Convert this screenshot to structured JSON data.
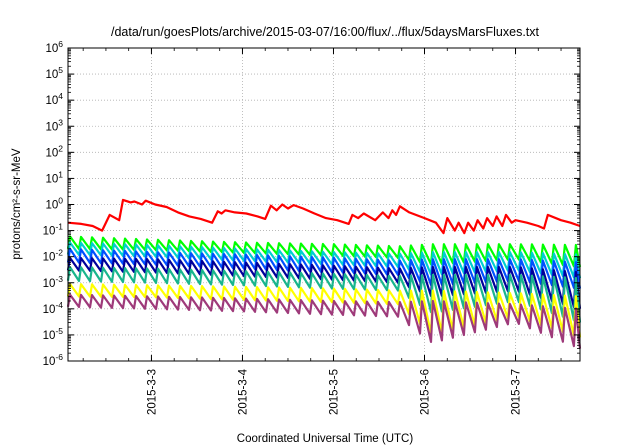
{
  "chart_data": {
    "type": "line",
    "title": "/data/run/goesPlots/archive/2015-03-07/16:00/flux/../flux/5daysMarsFluxes.txt",
    "xlabel": "Coordinated Universal Time (UTC)",
    "ylabel": "protons/cm²-s-sr-MeV",
    "y_scale": "log",
    "ylim": [
      1e-06,
      1000000.0
    ],
    "xlim": [
      "2015-03-02 02:00",
      "2015-03-07 17:00"
    ],
    "grid": true,
    "legend": "none",
    "y_tick_labels": [
      {
        "base": "10",
        "exp": "-6"
      },
      {
        "base": "10",
        "exp": "-5"
      },
      {
        "base": "10",
        "exp": "-4"
      },
      {
        "base": "10",
        "exp": "-3"
      },
      {
        "base": "10",
        "exp": "-2"
      },
      {
        "base": "10",
        "exp": "-1"
      },
      {
        "base": "10",
        "exp": "0"
      },
      {
        "base": "10",
        "exp": "1"
      },
      {
        "base": "10",
        "exp": "2"
      },
      {
        "base": "10",
        "exp": "3"
      },
      {
        "base": "10",
        "exp": "4"
      },
      {
        "base": "10",
        "exp": "5"
      },
      {
        "base": "10",
        "exp": "6"
      }
    ],
    "x_ticks": [
      {
        "label": "2015-3-3",
        "date": "2015-03-03 00:00"
      },
      {
        "label": "2015-3-4",
        "date": "2015-03-04 00:00"
      },
      {
        "label": "2015-3-5",
        "date": "2015-03-05 00:00"
      },
      {
        "label": "2015-3-6",
        "date": "2015-03-06 00:00"
      },
      {
        "label": "2015-3-7",
        "date": "2015-03-07 00:00"
      }
    ],
    "series": [
      {
        "color": "#ff0000",
        "points": [
          [
            "2015-03-02 02:00",
            0.2
          ],
          [
            "2015-03-02 05:30",
            0.18
          ],
          [
            "2015-03-02 08:30",
            0.15
          ],
          [
            "2015-03-02 11:00",
            0.1
          ],
          [
            "2015-03-02 13:00",
            0.4
          ],
          [
            "2015-03-02 14:30",
            0.3
          ],
          [
            "2015-03-02 15:30",
            0.25
          ],
          [
            "2015-03-02 16:30",
            1.5
          ],
          [
            "2015-03-02 18:30",
            1.2
          ],
          [
            "2015-03-02 19:30",
            1.3
          ],
          [
            "2015-03-02 21:30",
            1.0
          ],
          [
            "2015-03-02 22:30",
            1.4
          ],
          [
            "2015-03-03 01:00",
            1.0
          ],
          [
            "2015-03-03 04:00",
            0.8
          ],
          [
            "2015-03-03 07:00",
            0.5
          ],
          [
            "2015-03-03 10:00",
            0.35
          ],
          [
            "2015-03-03 13:00",
            0.28
          ],
          [
            "2015-03-03 16:00",
            0.2
          ],
          [
            "2015-03-03 17:30",
            0.55
          ],
          [
            "2015-03-03 18:30",
            0.45
          ],
          [
            "2015-03-03 19:30",
            0.6
          ],
          [
            "2015-03-03 22:00",
            0.5
          ],
          [
            "2015-03-04 01:00",
            0.45
          ],
          [
            "2015-03-04 04:00",
            0.35
          ],
          [
            "2015-03-04 06:00",
            0.28
          ],
          [
            "2015-03-04 07:30",
            0.9
          ],
          [
            "2015-03-04 09:00",
            0.6
          ],
          [
            "2015-03-04 10:30",
            1.0
          ],
          [
            "2015-03-04 12:00",
            0.7
          ],
          [
            "2015-03-04 13:30",
            0.95
          ],
          [
            "2015-03-04 16:00",
            0.7
          ],
          [
            "2015-03-04 19:00",
            0.45
          ],
          [
            "2015-03-04 22:00",
            0.3
          ],
          [
            "2015-03-05 01:00",
            0.25
          ],
          [
            "2015-03-05 04:00",
            0.18
          ],
          [
            "2015-03-05 05:00",
            0.4
          ],
          [
            "2015-03-05 06:30",
            0.3
          ],
          [
            "2015-03-05 08:00",
            0.45
          ],
          [
            "2015-03-05 11:00",
            0.25
          ],
          [
            "2015-03-05 13:00",
            0.5
          ],
          [
            "2015-03-05 14:30",
            0.3
          ],
          [
            "2015-03-05 15:30",
            0.6
          ],
          [
            "2015-03-05 16:30",
            0.4
          ],
          [
            "2015-03-05 17:30",
            0.85
          ],
          [
            "2015-03-05 20:00",
            0.5
          ],
          [
            "2015-03-06 00:00",
            0.3
          ],
          [
            "2015-03-06 03:00",
            0.2
          ],
          [
            "2015-03-06 05:00",
            0.08
          ],
          [
            "2015-03-06 06:00",
            0.3
          ],
          [
            "2015-03-06 08:00",
            0.1
          ],
          [
            "2015-03-06 09:00",
            0.2
          ],
          [
            "2015-03-06 10:30",
            0.08
          ],
          [
            "2015-03-06 11:30",
            0.2
          ],
          [
            "2015-03-06 13:00",
            0.1
          ],
          [
            "2015-03-06 14:00",
            0.25
          ],
          [
            "2015-03-06 15:30",
            0.12
          ],
          [
            "2015-03-06 16:30",
            0.3
          ],
          [
            "2015-03-06 18:00",
            0.15
          ],
          [
            "2015-03-06 19:00",
            0.35
          ],
          [
            "2015-03-06 20:30",
            0.15
          ],
          [
            "2015-03-06 21:30",
            0.4
          ],
          [
            "2015-03-06 23:00",
            0.2
          ],
          [
            "2015-03-07 00:00",
            0.25
          ],
          [
            "2015-03-07 03:00",
            0.2
          ],
          [
            "2015-03-07 06:00",
            0.15
          ],
          [
            "2015-03-07 07:30",
            0.12
          ],
          [
            "2015-03-07 08:30",
            0.4
          ],
          [
            "2015-03-07 12:00",
            0.25
          ],
          [
            "2015-03-07 14:30",
            0.2
          ],
          [
            "2015-03-07 17:00",
            0.15
          ]
        ]
      },
      {
        "color": "#00ff00",
        "pattern": "sawtooth",
        "period_hours": 2.9,
        "trend": [
          [
            "2015-03-02 02:00",
            0.02,
            0.06
          ],
          [
            "2015-03-03 00:00",
            0.018,
            0.045
          ],
          [
            "2015-03-04 00:00",
            0.014,
            0.035
          ],
          [
            "2015-03-05 00:00",
            0.011,
            0.03
          ],
          [
            "2015-03-05 17:00",
            0.009,
            0.025
          ],
          [
            "2015-03-06 02:00",
            0.005,
            0.03
          ],
          [
            "2015-03-07 00:00",
            0.008,
            0.03
          ],
          [
            "2015-03-07 17:00",
            0.004,
            0.028
          ]
        ]
      },
      {
        "color": "#00cfcf",
        "pattern": "sawtooth",
        "period_hours": 2.9,
        "trend": [
          [
            "2015-03-02 02:00",
            0.012,
            0.035
          ],
          [
            "2015-03-03 00:00",
            0.01,
            0.028
          ],
          [
            "2015-03-04 00:00",
            0.007,
            0.02
          ],
          [
            "2015-03-05 00:00",
            0.005,
            0.015
          ],
          [
            "2015-03-05 17:00",
            0.004,
            0.013
          ],
          [
            "2015-03-06 02:00",
            0.002,
            0.015
          ],
          [
            "2015-03-07 00:00",
            0.003,
            0.015
          ],
          [
            "2015-03-07 17:00",
            0.0015,
            0.012
          ]
        ]
      },
      {
        "color": "#0050ff",
        "pattern": "sawtooth",
        "period_hours": 2.9,
        "trend": [
          [
            "2015-03-02 02:00",
            0.006,
            0.02
          ],
          [
            "2015-03-03 00:00",
            0.005,
            0.015
          ],
          [
            "2015-03-04 00:00",
            0.0035,
            0.012
          ],
          [
            "2015-03-05 00:00",
            0.0025,
            0.009
          ],
          [
            "2015-03-05 17:00",
            0.002,
            0.007
          ],
          [
            "2015-03-06 02:00",
            0.0008,
            0.008
          ],
          [
            "2015-03-07 00:00",
            0.0012,
            0.008
          ],
          [
            "2015-03-07 17:00",
            0.0006,
            0.006
          ]
        ]
      },
      {
        "color": "#00009a",
        "pattern": "sawtooth",
        "period_hours": 2.9,
        "trend": [
          [
            "2015-03-02 02:00",
            0.003,
            0.009
          ],
          [
            "2015-03-03 00:00",
            0.0025,
            0.008
          ],
          [
            "2015-03-04 00:00",
            0.0018,
            0.006
          ],
          [
            "2015-03-05 00:00",
            0.0013,
            0.0045
          ],
          [
            "2015-03-05 17:00",
            0.001,
            0.0035
          ],
          [
            "2015-03-06 02:00",
            0.0003,
            0.004
          ],
          [
            "2015-03-07 00:00",
            0.0005,
            0.004
          ],
          [
            "2015-03-07 17:00",
            0.0001,
            0.0025
          ]
        ]
      },
      {
        "color": "#19b58d",
        "pattern": "sawtooth",
        "period_hours": 2.9,
        "trend": [
          [
            "2015-03-02 02:00",
            0.0012,
            0.004
          ],
          [
            "2015-03-03 00:00",
            0.001,
            0.0035
          ],
          [
            "2015-03-04 00:00",
            0.0008,
            0.0028
          ],
          [
            "2015-03-05 00:00",
            0.0006,
            0.0022
          ],
          [
            "2015-03-05 17:00",
            0.0005,
            0.0018
          ],
          [
            "2015-03-06 02:00",
            7e-05,
            0.002
          ],
          [
            "2015-03-07 00:00",
            0.0002,
            0.002
          ],
          [
            "2015-03-07 17:00",
            3e-05,
            0.0015
          ]
        ]
      },
      {
        "color": "#ffff00",
        "pattern": "sawtooth",
        "period_hours": 2.9,
        "trend": [
          [
            "2015-03-02 02:00",
            0.0003,
            0.0009
          ],
          [
            "2015-03-03 00:00",
            0.00028,
            0.0008
          ],
          [
            "2015-03-04 00:00",
            0.00022,
            0.0007
          ],
          [
            "2015-03-05 00:00",
            0.00018,
            0.0006
          ],
          [
            "2015-03-05 17:00",
            0.00015,
            0.0005
          ],
          [
            "2015-03-06 02:00",
            1e-05,
            0.0005
          ],
          [
            "2015-03-07 00:00",
            5e-05,
            0.0004
          ],
          [
            "2015-03-07 17:00",
            8e-06,
            0.0003
          ]
        ]
      },
      {
        "color": "#9e3a7a",
        "pattern": "sawtooth",
        "period_hours": 2.9,
        "trend": [
          [
            "2015-03-02 02:00",
            0.00012,
            0.00035
          ],
          [
            "2015-03-03 00:00",
            0.0001,
            0.0003
          ],
          [
            "2015-03-04 00:00",
            8e-05,
            0.00025
          ],
          [
            "2015-03-05 00:00",
            6e-05,
            0.0002
          ],
          [
            "2015-03-05 17:00",
            5e-05,
            0.00018
          ],
          [
            "2015-03-06 02:00",
            5e-06,
            0.0002
          ],
          [
            "2015-03-07 00:00",
            3e-05,
            0.00015
          ],
          [
            "2015-03-07 17:00",
            3e-06,
            0.0001
          ]
        ]
      }
    ]
  }
}
